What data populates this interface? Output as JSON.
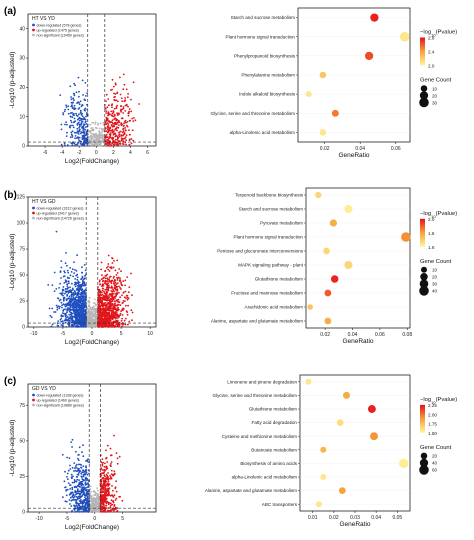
{
  "colors": {
    "down": "#1f4fbf",
    "up": "#e0151b",
    "ns": "#b5b5b5",
    "grad_low": "#fff7a0",
    "grad_mid": "#f6a33a",
    "grad_high": "#e8121a"
  },
  "chart_data": [
    {
      "panel": "(a)",
      "type": "scatter",
      "subtype": "volcano",
      "title": "",
      "legend_title": "HT VS YD",
      "legend": [
        "down-regulated (578 genes)",
        "up-regulated (1475 genes)",
        "non-significant (19450 genes)"
      ],
      "xlabel": "Log2(FoldChange)",
      "ylabel": "-Log10 (p-adjusted)",
      "xlim": [
        -8,
        7
      ],
      "ylim": [
        0,
        45
      ],
      "xticks": [
        "-6",
        "-4",
        "-2",
        "0",
        "2",
        "4",
        "6"
      ],
      "yticks": [
        "0",
        "10",
        "20",
        "30",
        "40"
      ],
      "cutoff_lines": [
        -1,
        1
      ],
      "spread": {
        "down": 4,
        "up": 5.5,
        "down_n": 260,
        "up_n": 330,
        "ns_n": 180
      }
    },
    {
      "panel": "(a)",
      "type": "scatter",
      "subtype": "dotplot",
      "xlabel": "GeneRatio",
      "xlim": [
        0.005,
        0.068
      ],
      "xticks": [
        "0.02",
        "0.04",
        "0.06"
      ],
      "terms": [
        {
          "label": "Starch and sucrose metabolism",
          "ratio": 0.048,
          "count": 20,
          "p": 2.85
        },
        {
          "label": "Plant hormone signal transduction",
          "ratio": 0.065,
          "count": 30,
          "p": 2.0
        },
        {
          "label": "Phenylpropanoid biosynthesis",
          "ratio": 0.045,
          "count": 20,
          "p": 2.7
        },
        {
          "label": "Phenylalanine metabolism",
          "ratio": 0.019,
          "count": 10,
          "p": 2.2
        },
        {
          "label": "Indole alkaloid biosynthesis",
          "ratio": 0.011,
          "count": 7,
          "p": 2.0
        },
        {
          "label": "Glycine, serine and threonine metabolism",
          "ratio": 0.026,
          "count": 12,
          "p": 2.55
        },
        {
          "label": "alpha-Linolenic acid metabolism",
          "ratio": 0.019,
          "count": 10,
          "p": 2.0
        }
      ],
      "color_legend_title": "-log10(Pvalue)",
      "color_ticks": [
        "2.8",
        "2.4",
        "2.0"
      ],
      "color_range": [
        1.9,
        2.9
      ],
      "size_legend_title": "Gene Count",
      "size_ticks": [
        "10",
        "20",
        "30"
      ]
    },
    {
      "panel": "(b)",
      "type": "scatter",
      "subtype": "volcano",
      "title": "",
      "legend_title": "HT VS GD",
      "legend": [
        "down-regulated (3312 genes)",
        "up-regulated (3417 genes)",
        "non-significant (14726 genes)"
      ],
      "xlabel": "Log2(FoldChange)",
      "ylabel": "-Log10 (p-adjusted)",
      "xlim": [
        -11,
        11
      ],
      "ylim": [
        0,
        125
      ],
      "xticks": [
        "-10",
        "-5",
        "0",
        "5",
        "10"
      ],
      "yticks": [
        "0",
        "25",
        "50",
        "75",
        "100",
        "125"
      ],
      "cutoff_lines": [
        -1,
        1
      ],
      "spread": {
        "down": 7,
        "up": 7,
        "down_n": 900,
        "up_n": 900,
        "ns_n": 300
      }
    },
    {
      "panel": "(b)",
      "type": "scatter",
      "subtype": "dotplot",
      "xlabel": "GeneRatio",
      "xlim": [
        0.006,
        0.082
      ],
      "xticks": [
        "0.02",
        "0.04",
        "0.06",
        "0.08"
      ],
      "terms": [
        {
          "label": "Terpenoid backbone biosynthesis",
          "ratio": 0.015,
          "count": 12,
          "p": 1.6
        },
        {
          "label": "Starch and sucrose metabolism",
          "ratio": 0.037,
          "count": 25,
          "p": 1.5
        },
        {
          "label": "Pyruvate metabolism",
          "ratio": 0.026,
          "count": 18,
          "p": 1.8
        },
        {
          "label": "Plant hormone signal transduction",
          "ratio": 0.079,
          "count": 40,
          "p": 1.9
        },
        {
          "label": "Pentose and glucuronate interconversions",
          "ratio": 0.021,
          "count": 14,
          "p": 1.6
        },
        {
          "label": "MAPK signaling pathway - plant",
          "ratio": 0.037,
          "count": 25,
          "p": 1.6
        },
        {
          "label": "Glutathione metabolism",
          "ratio": 0.027,
          "count": 20,
          "p": 2.2
        },
        {
          "label": "Fructose and mannose metabolism",
          "ratio": 0.022,
          "count": 15,
          "p": 2.05
        },
        {
          "label": "Arachidonic acid metabolism",
          "ratio": 0.009,
          "count": 8,
          "p": 1.7
        },
        {
          "label": "Alanine, aspartate and glutamate metabolism",
          "ratio": 0.022,
          "count": 15,
          "p": 1.8
        }
      ],
      "color_legend_title": "-log10(Pvalue)",
      "color_ticks": [
        "2.0",
        "1.8",
        "1.6"
      ],
      "color_range": [
        1.45,
        2.25
      ],
      "size_legend_title": "Gene Count",
      "size_ticks": [
        "10",
        "20",
        "30",
        "40"
      ]
    },
    {
      "panel": "(c)",
      "type": "scatter",
      "subtype": "volcano",
      "title": "",
      "legend_title": "GD VS YD",
      "legend": [
        "down-regulated (1338 genes)",
        "up-regulated (1460 genes)",
        "non-significant (19880 genes)"
      ],
      "xlabel": "Log2(FoldChange)",
      "ylabel": "-Log10 (p-adjusted)",
      "xlim": [
        -12,
        11
      ],
      "ylim": [
        0,
        90
      ],
      "xticks": [
        "-10",
        "-5",
        "0",
        "5"
      ],
      "yticks": [
        "0",
        "25",
        "50",
        "75"
      ],
      "cutoff_lines": [
        -1,
        1
      ],
      "spread": {
        "down": 6,
        "up": 4.5,
        "down_n": 420,
        "up_n": 340,
        "ns_n": 260
      }
    },
    {
      "panel": "(c)",
      "type": "scatter",
      "subtype": "dotplot",
      "xlabel": "GeneRatio",
      "xlim": [
        0.004,
        0.056
      ],
      "xticks": [
        "0.01",
        "0.02",
        "0.03",
        "0.04",
        "0.05"
      ],
      "terms": [
        {
          "label": "Limonene and pinene degradation",
          "ratio": 0.008,
          "count": 15,
          "p": 1.5
        },
        {
          "label": "Glycine, serine and threonine metabolism",
          "ratio": 0.026,
          "count": 25,
          "p": 1.85
        },
        {
          "label": "Glutathione metabolism",
          "ratio": 0.038,
          "count": 35,
          "p": 2.35
        },
        {
          "label": "Fatty acid degradation",
          "ratio": 0.023,
          "count": 22,
          "p": 1.55
        },
        {
          "label": "Cysteine and methionine metabolism",
          "ratio": 0.039,
          "count": 35,
          "p": 1.95
        },
        {
          "label": "Butanoate metabolism",
          "ratio": 0.015,
          "count": 15,
          "p": 1.8
        },
        {
          "label": "Biosynthesis of amino acids",
          "ratio": 0.053,
          "count": 60,
          "p": 1.45
        },
        {
          "label": "alpha-Linolenic acid metabolism",
          "ratio": 0.015,
          "count": 15,
          "p": 1.5
        },
        {
          "label": "Alanine, aspartate and glutamate metabolism",
          "ratio": 0.024,
          "count": 22,
          "p": 1.9
        },
        {
          "label": "ABC transporters",
          "ratio": 0.013,
          "count": 15,
          "p": 1.5
        }
      ],
      "color_legend_title": "-log10(Pvalue)",
      "color_ticks": [
        "2.25",
        "2.00",
        "1.75",
        "1.50"
      ],
      "color_range": [
        1.4,
        2.4
      ],
      "size_legend_title": "Gene Count",
      "size_ticks": [
        "20",
        "40",
        "60"
      ]
    }
  ]
}
